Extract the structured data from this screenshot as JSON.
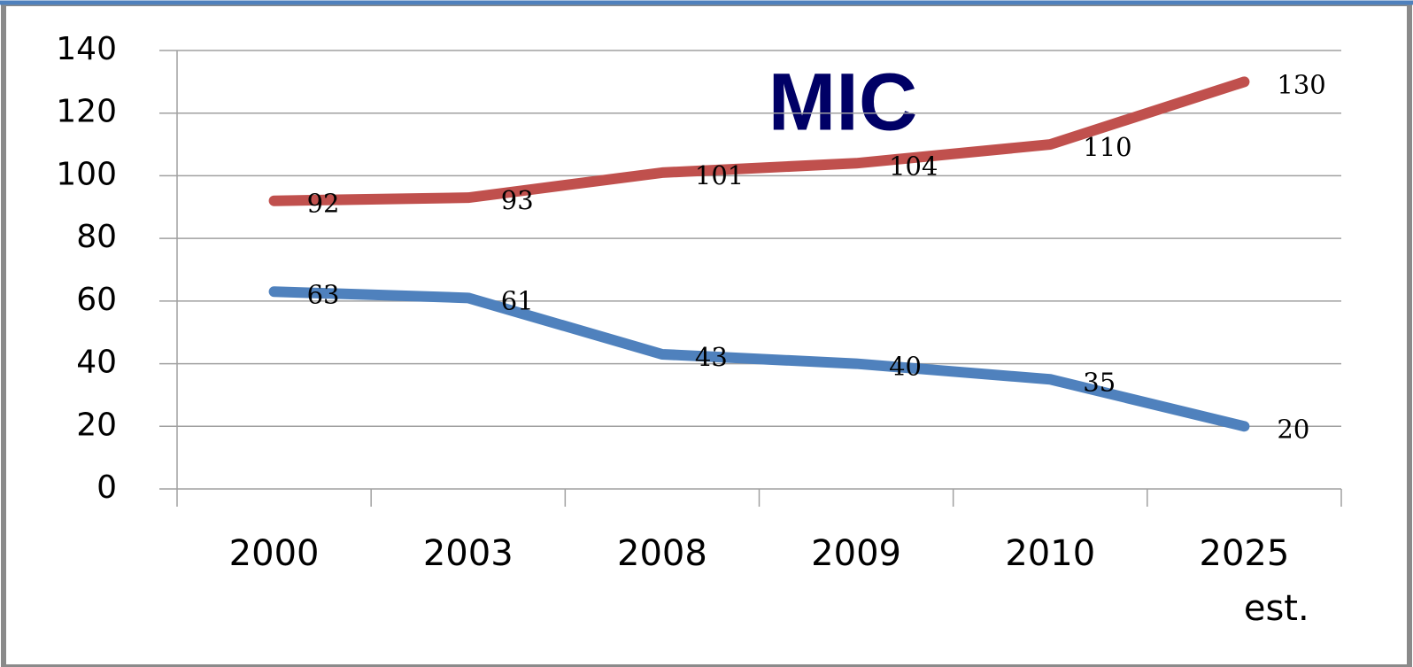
{
  "chart_data": {
    "type": "line",
    "title": "MIC",
    "categories": [
      "2000",
      "2003",
      "2008",
      "2009",
      "2010",
      "2025 est."
    ],
    "series": [
      {
        "color": "#c0504d",
        "values": [
          92,
          93,
          101,
          104,
          110,
          130
        ]
      },
      {
        "color": "#4f81bd",
        "values": [
          63,
          61,
          43,
          40,
          35,
          20
        ]
      }
    ],
    "ylim": [
      0,
      140
    ],
    "yticks": [
      0,
      20,
      40,
      60,
      80,
      100,
      120,
      140
    ],
    "grid": true
  }
}
